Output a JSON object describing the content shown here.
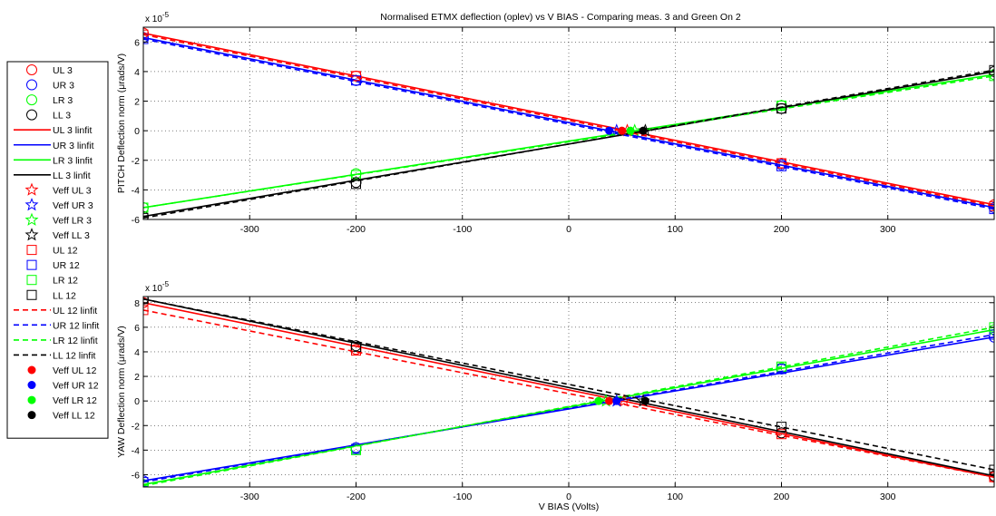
{
  "figure": {
    "title": "Normalised ETMX deflection (oplev) vs V BIAS - Comparing meas. 3 and Green On 2"
  },
  "colors": {
    "UL": "#ff0000",
    "UR": "#0000ff",
    "LR": "#00ff00",
    "LL": "#000000"
  },
  "legend": {
    "entries": [
      {
        "label": "UL 3",
        "marker": "circle",
        "color": "#ff0000"
      },
      {
        "label": "UR 3",
        "marker": "circle",
        "color": "#0000ff"
      },
      {
        "label": "LR 3",
        "marker": "circle",
        "color": "#00ff00"
      },
      {
        "label": "LL 3",
        "marker": "circle",
        "color": "#000000"
      },
      {
        "label": "UL 3 linfit",
        "marker": "solid-line",
        "color": "#ff0000"
      },
      {
        "label": "UR 3 linfit",
        "marker": "solid-line",
        "color": "#0000ff"
      },
      {
        "label": "LR 3 linfit",
        "marker": "solid-line",
        "color": "#00ff00"
      },
      {
        "label": "LL 3 linfit",
        "marker": "solid-line",
        "color": "#000000"
      },
      {
        "label": "Veff UL 3",
        "marker": "star",
        "color": "#ff0000"
      },
      {
        "label": "Veff UR 3",
        "marker": "star",
        "color": "#0000ff"
      },
      {
        "label": "Veff LR 3",
        "marker": "star",
        "color": "#00ff00"
      },
      {
        "label": "Veff LL 3",
        "marker": "star",
        "color": "#000000"
      },
      {
        "label": "UL 12",
        "marker": "square",
        "color": "#ff0000"
      },
      {
        "label": "UR 12",
        "marker": "square",
        "color": "#0000ff"
      },
      {
        "label": "LR 12",
        "marker": "square",
        "color": "#00ff00"
      },
      {
        "label": "LL 12",
        "marker": "square",
        "color": "#000000"
      },
      {
        "label": "UL 12 linfit",
        "marker": "dashed-line",
        "color": "#ff0000"
      },
      {
        "label": "UR 12 linfit",
        "marker": "dashed-line",
        "color": "#0000ff"
      },
      {
        "label": "LR 12 linfit",
        "marker": "dashed-line",
        "color": "#00ff00"
      },
      {
        "label": "LL 12 linfit",
        "marker": "dashed-line",
        "color": "#000000"
      },
      {
        "label": "Veff UL 12",
        "marker": "dot",
        "color": "#ff0000"
      },
      {
        "label": "Veff UR 12",
        "marker": "dot",
        "color": "#0000ff"
      },
      {
        "label": "Veff LR 12",
        "marker": "dot",
        "color": "#00ff00"
      },
      {
        "label": "Veff LL 12",
        "marker": "dot",
        "color": "#000000"
      }
    ]
  },
  "chart_data": [
    {
      "type": "line",
      "id": "pitch",
      "title": "Normalised ETMX deflection (oplev) vs V BIAS - Comparing meas. 3 and Green On 2",
      "ylabel": "PITCH Deflection norm (μrads/V)",
      "xlabel": "",
      "exponent_label": "x 10",
      "exponent_power": "-5",
      "xlim": [
        -400,
        400
      ],
      "ylim": [
        -6,
        7
      ],
      "xticks": [
        -300,
        -200,
        -100,
        0,
        100,
        200,
        300
      ],
      "xtick_labels": [
        "-300",
        "-200",
        "-100",
        "0",
        "100",
        "200",
        "300"
      ],
      "yticks": [
        -6,
        -4,
        -2,
        0,
        2,
        4,
        6
      ],
      "ytick_labels": [
        "-6",
        "-4",
        "-2",
        "0",
        "2",
        "4",
        "6"
      ],
      "grid": true,
      "series": [
        {
          "name": "UL 3",
          "color": "#ff0000",
          "marker": "circle",
          "x": [
            -400,
            -200,
            200,
            400
          ],
          "y": [
            6.6,
            3.7,
            -2.2,
            -5.0
          ]
        },
        {
          "name": "UR 3",
          "color": "#0000ff",
          "marker": "circle",
          "x": [
            -400,
            -200,
            200,
            400
          ],
          "y": [
            6.3,
            3.4,
            -2.3,
            -5.2
          ]
        },
        {
          "name": "LR 3",
          "color": "#00ff00",
          "marker": "circle",
          "x": [
            -400,
            -200,
            200,
            400
          ],
          "y": [
            -5.2,
            -2.9,
            1.7,
            3.8
          ]
        },
        {
          "name": "LL 3",
          "color": "#000000",
          "marker": "circle",
          "x": [
            -400,
            -200,
            200,
            400
          ],
          "y": [
            -5.8,
            -3.5,
            1.5,
            4.0
          ]
        },
        {
          "name": "UL 3 linfit",
          "color": "#ff0000",
          "style": "solid",
          "x": [
            -400,
            400
          ],
          "y": [
            6.6,
            -5.0
          ]
        },
        {
          "name": "UR 3 linfit",
          "color": "#0000ff",
          "style": "solid",
          "x": [
            -400,
            400
          ],
          "y": [
            6.3,
            -5.2
          ]
        },
        {
          "name": "LR 3 linfit",
          "color": "#00ff00",
          "style": "solid",
          "x": [
            -400,
            400
          ],
          "y": [
            -5.2,
            3.8
          ]
        },
        {
          "name": "LL 3 linfit",
          "color": "#000000",
          "style": "solid",
          "x": [
            -400,
            400
          ],
          "y": [
            -5.8,
            4.0
          ]
        },
        {
          "name": "Veff UL 3",
          "color": "#ff0000",
          "marker": "star",
          "x": [
            55
          ],
          "y": [
            0
          ]
        },
        {
          "name": "Veff UR 3",
          "color": "#0000ff",
          "marker": "star",
          "x": [
            45
          ],
          "y": [
            0
          ]
        },
        {
          "name": "Veff LR 3",
          "color": "#00ff00",
          "marker": "star",
          "x": [
            62
          ],
          "y": [
            0
          ]
        },
        {
          "name": "Veff LL 3",
          "color": "#000000",
          "marker": "star",
          "x": [
            72
          ],
          "y": [
            0
          ]
        },
        {
          "name": "UL 12",
          "color": "#ff0000",
          "marker": "square",
          "x": [
            -400,
            -200,
            200,
            400
          ],
          "y": [
            6.5,
            3.7,
            -2.2,
            -5.1
          ]
        },
        {
          "name": "UR 12",
          "color": "#0000ff",
          "marker": "square",
          "x": [
            -400,
            -200,
            200,
            400
          ],
          "y": [
            6.2,
            3.4,
            -2.4,
            -5.3
          ]
        },
        {
          "name": "LR 12",
          "color": "#00ff00",
          "marker": "square",
          "x": [
            -400,
            -200,
            200,
            400
          ],
          "y": [
            -5.2,
            -3.0,
            1.7,
            3.7
          ]
        },
        {
          "name": "LL 12",
          "color": "#000000",
          "marker": "square",
          "x": [
            -400,
            -200,
            200,
            400
          ],
          "y": [
            -5.9,
            -3.6,
            1.5,
            4.1
          ]
        },
        {
          "name": "UL 12 linfit",
          "color": "#ff0000",
          "style": "dashed",
          "x": [
            -400,
            400
          ],
          "y": [
            6.5,
            -5.1
          ]
        },
        {
          "name": "UR 12 linfit",
          "color": "#0000ff",
          "style": "dashed",
          "x": [
            -400,
            400
          ],
          "y": [
            6.2,
            -5.3
          ]
        },
        {
          "name": "LR 12 linfit",
          "color": "#00ff00",
          "style": "dashed",
          "x": [
            -400,
            400
          ],
          "y": [
            -5.2,
            3.7
          ]
        },
        {
          "name": "LL 12 linfit",
          "color": "#000000",
          "style": "dashed",
          "x": [
            -400,
            400
          ],
          "y": [
            -5.9,
            4.1
          ]
        },
        {
          "name": "Veff UL 12",
          "color": "#ff0000",
          "marker": "dot",
          "x": [
            50
          ],
          "y": [
            0
          ]
        },
        {
          "name": "Veff UR 12",
          "color": "#0000ff",
          "marker": "dot",
          "x": [
            38
          ],
          "y": [
            0
          ]
        },
        {
          "name": "Veff LR 12",
          "color": "#00ff00",
          "marker": "dot",
          "x": [
            58
          ],
          "y": [
            0
          ]
        },
        {
          "name": "Veff LL 12",
          "color": "#000000",
          "marker": "dot",
          "x": [
            70
          ],
          "y": [
            0
          ]
        }
      ]
    },
    {
      "type": "line",
      "id": "yaw",
      "title": "",
      "ylabel": "YAW Deflection norm (μrads/V)",
      "xlabel": "V BIAS (Volts)",
      "exponent_label": "x 10",
      "exponent_power": "-5",
      "xlim": [
        -400,
        400
      ],
      "ylim": [
        -7,
        8.5
      ],
      "xticks": [
        -300,
        -200,
        -100,
        0,
        100,
        200,
        300
      ],
      "xtick_labels": [
        "-300",
        "-200",
        "-100",
        "0",
        "100",
        "200",
        "300"
      ],
      "yticks": [
        -6,
        -4,
        -2,
        0,
        2,
        4,
        6,
        8
      ],
      "ytick_labels": [
        "-6",
        "-4",
        "-2",
        "0",
        "2",
        "4",
        "6",
        "8"
      ],
      "grid": true,
      "series": [
        {
          "name": "UL 3",
          "color": "#ff0000",
          "marker": "circle",
          "x": [
            -400,
            -200,
            200,
            400
          ],
          "y": [
            8.0,
            4.2,
            -2.6,
            -6.2
          ]
        },
        {
          "name": "UR 3",
          "color": "#0000ff",
          "marker": "circle",
          "x": [
            -400,
            -200,
            200,
            400
          ],
          "y": [
            -6.5,
            -3.8,
            2.6,
            5.2
          ]
        },
        {
          "name": "LR 3",
          "color": "#00ff00",
          "marker": "circle",
          "x": [
            -400,
            -200,
            200,
            400
          ],
          "y": [
            -6.8,
            -3.9,
            2.7,
            5.8
          ]
        },
        {
          "name": "LL 3",
          "color": "#000000",
          "marker": "circle",
          "x": [
            -400,
            -200,
            200,
            400
          ],
          "y": [
            8.3,
            4.5,
            -2.6,
            -6.1
          ]
        },
        {
          "name": "UL 3 linfit",
          "color": "#ff0000",
          "style": "solid",
          "x": [
            -400,
            400
          ],
          "y": [
            8.0,
            -6.2
          ]
        },
        {
          "name": "UR 3 linfit",
          "color": "#0000ff",
          "style": "solid",
          "x": [
            -400,
            400
          ],
          "y": [
            -6.5,
            5.2
          ]
        },
        {
          "name": "LR 3 linfit",
          "color": "#00ff00",
          "style": "solid",
          "x": [
            -400,
            400
          ],
          "y": [
            -6.8,
            5.8
          ]
        },
        {
          "name": "LL 3 linfit",
          "color": "#000000",
          "style": "solid",
          "x": [
            -400,
            400
          ],
          "y": [
            8.3,
            -6.1
          ]
        },
        {
          "name": "Veff UL 3",
          "color": "#ff0000",
          "marker": "star",
          "x": [
            52
          ],
          "y": [
            0
          ]
        },
        {
          "name": "Veff UR 3",
          "color": "#0000ff",
          "marker": "star",
          "x": [
            45
          ],
          "y": [
            0
          ]
        },
        {
          "name": "Veff LR 3",
          "color": "#00ff00",
          "marker": "star",
          "x": [
            35
          ],
          "y": [
            0
          ]
        },
        {
          "name": "Veff LL 3",
          "color": "#000000",
          "marker": "star",
          "x": [
            70
          ],
          "y": [
            0
          ]
        },
        {
          "name": "UL 12",
          "color": "#ff0000",
          "marker": "square",
          "x": [
            -400,
            -200,
            200,
            400
          ],
          "y": [
            7.4,
            4.1,
            -2.7,
            -6.2
          ]
        },
        {
          "name": "UR 12",
          "color": "#0000ff",
          "marker": "square",
          "x": [
            -400,
            -200,
            200,
            400
          ],
          "y": [
            -6.6,
            -3.9,
            2.6,
            5.4
          ]
        },
        {
          "name": "LR 12",
          "color": "#00ff00",
          "marker": "square",
          "x": [
            -400,
            -200,
            200,
            400
          ],
          "y": [
            -6.9,
            -4.0,
            2.8,
            6.0
          ]
        },
        {
          "name": "LL 12",
          "color": "#000000",
          "marker": "square",
          "x": [
            -400,
            -200,
            200,
            400
          ],
          "y": [
            8.3,
            4.4,
            -2.1,
            -5.6
          ]
        },
        {
          "name": "UL 12 linfit",
          "color": "#ff0000",
          "style": "dashed",
          "x": [
            -400,
            400
          ],
          "y": [
            7.4,
            -6.2
          ]
        },
        {
          "name": "UR 12 linfit",
          "color": "#0000ff",
          "style": "dashed",
          "x": [
            -400,
            400
          ],
          "y": [
            -6.6,
            5.4
          ]
        },
        {
          "name": "LR 12 linfit",
          "color": "#00ff00",
          "style": "dashed",
          "x": [
            -400,
            400
          ],
          "y": [
            -6.9,
            6.0
          ]
        },
        {
          "name": "LL 12 linfit",
          "color": "#000000",
          "style": "dashed",
          "x": [
            -400,
            400
          ],
          "y": [
            8.3,
            -5.6
          ]
        },
        {
          "name": "Veff UL 12",
          "color": "#ff0000",
          "marker": "dot",
          "x": [
            38
          ],
          "y": [
            0
          ]
        },
        {
          "name": "Veff UR 12",
          "color": "#0000ff",
          "marker": "dot",
          "x": [
            45
          ],
          "y": [
            0
          ]
        },
        {
          "name": "Veff LR 12",
          "color": "#00ff00",
          "marker": "dot",
          "x": [
            28
          ],
          "y": [
            0
          ]
        },
        {
          "name": "Veff LL 12",
          "color": "#000000",
          "marker": "dot",
          "x": [
            72
          ],
          "y": [
            0
          ]
        }
      ]
    }
  ]
}
